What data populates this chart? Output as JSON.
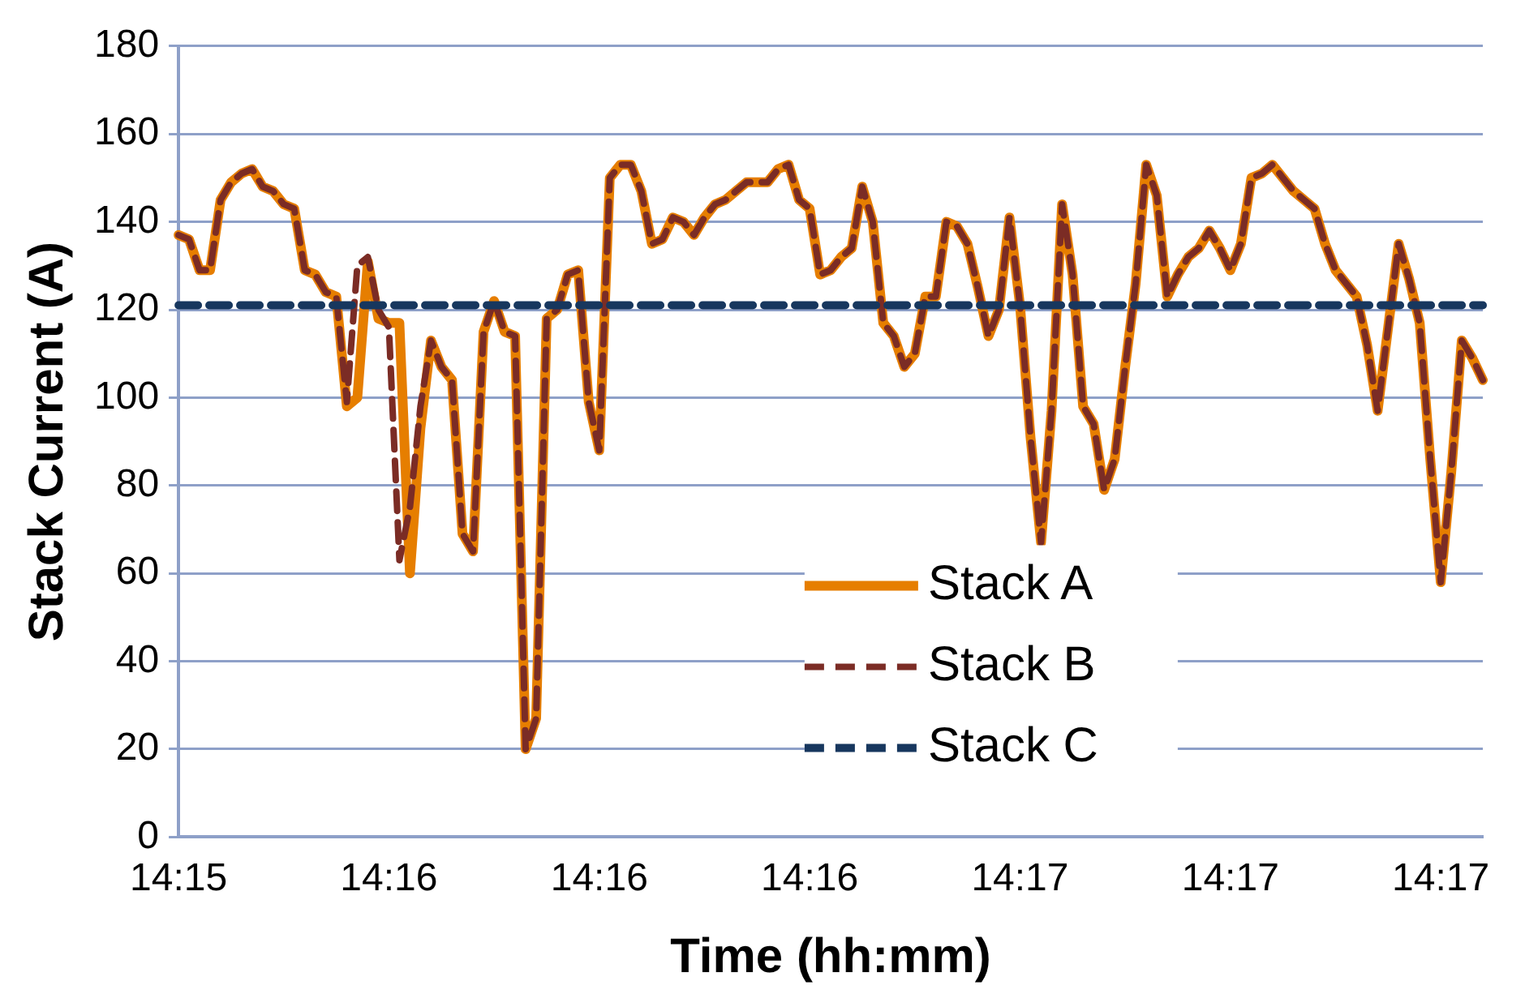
{
  "chart_data": {
    "type": "line",
    "xlabel": "Time (hh:mm)",
    "ylabel": "Stack Current (A)",
    "categories": [
      "14:15",
      null,
      null,
      null,
      null,
      null,
      null,
      null,
      null,
      null,
      null,
      null,
      null,
      null,
      null,
      null,
      null,
      null,
      null,
      null,
      "14:16",
      null,
      null,
      null,
      null,
      null,
      null,
      null,
      null,
      null,
      null,
      null,
      null,
      null,
      null,
      null,
      null,
      null,
      null,
      null,
      "14:16",
      null,
      null,
      null,
      null,
      null,
      null,
      null,
      null,
      null,
      null,
      null,
      null,
      null,
      null,
      null,
      null,
      null,
      null,
      null,
      "14:16",
      null,
      null,
      null,
      null,
      null,
      null,
      null,
      null,
      null,
      null,
      null,
      null,
      null,
      null,
      null,
      null,
      null,
      null,
      null,
      "14:17",
      null,
      null,
      null,
      null,
      null,
      null,
      null,
      null,
      null,
      null,
      null,
      null,
      null,
      null,
      null,
      null,
      null,
      null,
      null,
      "14:17",
      null,
      null,
      null,
      null,
      null,
      null,
      null,
      null,
      null,
      null,
      null,
      null,
      null,
      null,
      null,
      null,
      null,
      null,
      null,
      "14:17",
      null,
      null,
      null,
      null
    ],
    "series": [
      {
        "name": "Stack A",
        "color": "#e67e00",
        "line_style": "solid",
        "values": [
          137,
          136,
          129,
          129,
          145,
          149,
          151,
          152,
          148,
          147,
          144,
          143,
          129,
          128,
          124,
          123,
          98,
          100,
          131,
          118,
          117,
          117,
          60,
          93,
          113,
          107,
          104,
          69,
          65,
          115,
          122,
          115,
          114,
          20,
          27,
          118,
          120,
          128,
          129,
          99,
          88,
          150,
          153,
          153,
          147,
          135,
          136,
          141,
          140,
          137,
          141,
          144,
          145,
          147,
          149,
          149,
          149,
          152,
          153,
          145,
          143,
          128,
          129,
          132,
          134,
          148,
          140,
          117,
          114,
          107,
          110,
          123,
          123,
          140,
          139,
          135,
          125,
          114,
          120,
          141,
          121,
          91,
          67,
          97,
          144,
          128,
          98,
          94,
          79,
          86,
          107,
          126,
          153,
          146,
          123,
          128,
          132,
          134,
          138,
          134,
          129,
          135,
          150,
          151,
          153,
          150,
          147,
          145,
          143,
          135,
          129,
          126,
          123,
          112,
          97,
          116,
          135,
          127,
          117,
          86,
          58,
          83,
          113,
          109,
          104
        ]
      },
      {
        "name": "Stack B",
        "color": "#7b2c25",
        "line_style": "dashed",
        "values": [
          137,
          136,
          129,
          129,
          145,
          149,
          151,
          152,
          148,
          147,
          144,
          143,
          129,
          128,
          124,
          123,
          99,
          130,
          132,
          120,
          116,
          63,
          75,
          98,
          113,
          107,
          104,
          69,
          65,
          115,
          122,
          115,
          114,
          20,
          27,
          118,
          120,
          128,
          129,
          99,
          88,
          150,
          153,
          153,
          147,
          135,
          136,
          141,
          140,
          137,
          141,
          144,
          145,
          147,
          149,
          149,
          149,
          152,
          153,
          145,
          143,
          128,
          129,
          132,
          134,
          148,
          140,
          117,
          114,
          107,
          110,
          123,
          123,
          140,
          139,
          135,
          125,
          114,
          120,
          141,
          121,
          91,
          67,
          97,
          144,
          128,
          98,
          94,
          79,
          86,
          107,
          126,
          153,
          146,
          123,
          128,
          132,
          134,
          138,
          134,
          129,
          135,
          150,
          151,
          153,
          150,
          147,
          145,
          143,
          135,
          129,
          126,
          123,
          112,
          97,
          116,
          135,
          127,
          117,
          86,
          58,
          83,
          113,
          109,
          104
        ]
      },
      {
        "name": "Stack C",
        "color": "#17375e",
        "line_style": "dashed",
        "values": [
          121,
          121,
          121,
          121,
          121,
          121,
          121,
          121,
          121,
          121,
          121,
          121,
          121,
          121,
          121,
          121,
          121,
          121,
          121,
          121,
          121,
          121,
          121,
          121,
          121,
          121,
          121,
          121,
          121,
          121,
          121,
          121,
          121,
          121,
          121,
          121,
          121,
          121,
          121,
          121,
          121,
          121,
          121,
          121,
          121,
          121,
          121,
          121,
          121,
          121,
          121,
          121,
          121,
          121,
          121,
          121,
          121,
          121,
          121,
          121,
          121,
          121,
          121,
          121,
          121,
          121,
          121,
          121,
          121,
          121,
          121,
          121,
          121,
          121,
          121,
          121,
          121,
          121,
          121,
          121,
          121,
          121,
          121,
          121,
          121,
          121,
          121,
          121,
          121,
          121,
          121,
          121,
          121,
          121,
          121,
          121,
          121,
          121,
          121,
          121,
          121,
          121,
          121,
          121,
          121,
          121,
          121,
          121,
          121,
          121,
          121,
          121,
          121,
          121,
          121,
          121,
          121,
          121,
          121,
          121,
          121,
          121,
          121,
          121,
          121
        ]
      }
    ],
    "ylim": [
      0,
      180
    ],
    "yticks": [
      0,
      20,
      40,
      60,
      80,
      100,
      120,
      140,
      160,
      180
    ],
    "grid": "y",
    "legend": "bottom",
    "marker": "none"
  }
}
